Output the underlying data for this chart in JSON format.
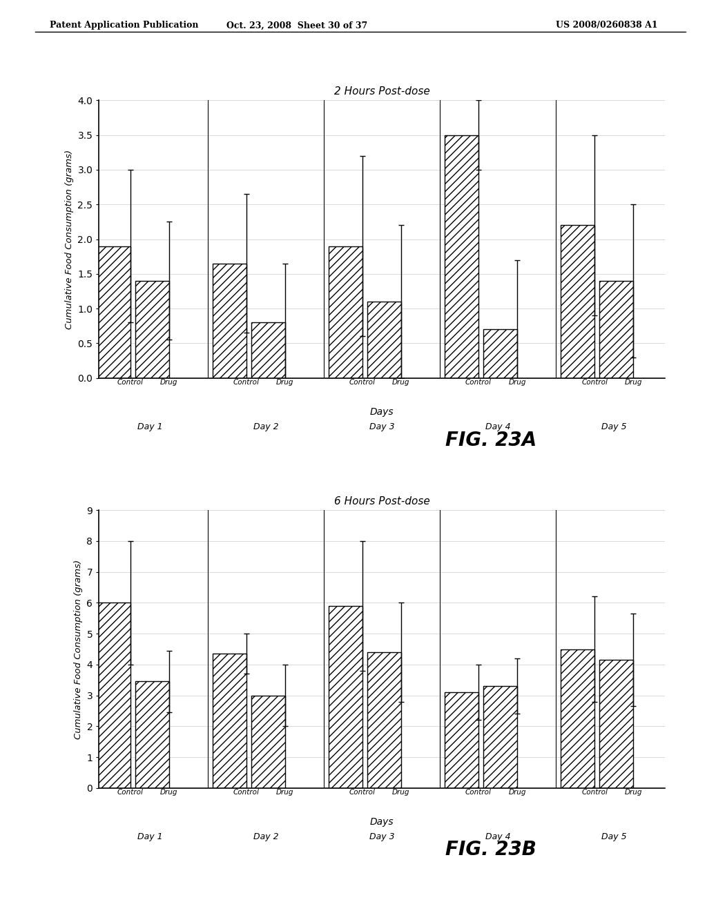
{
  "chart_a": {
    "title": "2 Hours Post-dose",
    "ylabel": "Cumulative Food Consumption (grams)",
    "xlabel": "Days",
    "fig_label": "FIG. 23A",
    "ylim": [
      0,
      4
    ],
    "yticks": [
      0,
      0.5,
      1,
      1.5,
      2,
      2.5,
      3,
      3.5,
      4
    ],
    "days": [
      "Day 1",
      "Day 2",
      "Day 3",
      "Day 4",
      "Day 5"
    ],
    "control_values": [
      1.9,
      1.65,
      1.9,
      3.5,
      2.2
    ],
    "drug_values": [
      1.4,
      0.8,
      1.1,
      0.7,
      1.4
    ],
    "control_errors": [
      1.1,
      1.0,
      1.3,
      0.5,
      1.3
    ],
    "drug_errors": [
      0.85,
      0.85,
      1.1,
      1.0,
      1.1
    ]
  },
  "chart_b": {
    "title": "6 Hours Post-dose",
    "ylabel": "Cumulative Food Consumption (grams)",
    "xlabel": "Days",
    "fig_label": "FIG. 23B",
    "ylim": [
      0,
      9
    ],
    "yticks": [
      0,
      1,
      2,
      3,
      4,
      5,
      6,
      7,
      8,
      9
    ],
    "days": [
      "Day 1",
      "Day 2",
      "Day 3",
      "Day 4",
      "Day 5"
    ],
    "control_values": [
      6.0,
      4.35,
      5.9,
      3.1,
      4.5
    ],
    "drug_values": [
      3.45,
      3.0,
      4.4,
      3.3,
      4.15
    ],
    "control_errors": [
      2.0,
      0.65,
      2.1,
      0.9,
      1.7
    ],
    "drug_errors": [
      1.0,
      1.0,
      1.6,
      0.9,
      1.5
    ]
  },
  "header_left": "Patent Application Publication",
  "header_center": "Oct. 23, 2008  Sheet 30 of 37",
  "header_right": "US 2008/0260838 A1",
  "bar_color": "white",
  "hatch": "///",
  "edge_color": "black"
}
